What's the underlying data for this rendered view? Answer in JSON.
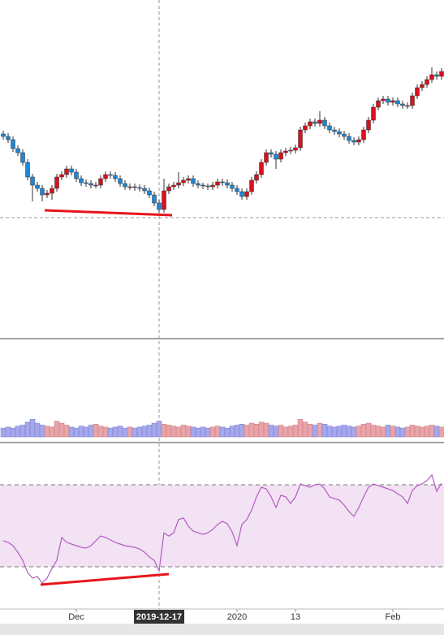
{
  "chart_data": [
    {
      "type": "candlestick",
      "up_color": "#d9101e",
      "down_color": "#1e88d8",
      "ylim": [
        0,
        41.7
      ],
      "crosshair_y": 14.9,
      "open": [
        25.2,
        24.9,
        24.5,
        23.4,
        22.9,
        21.7,
        19.9,
        18.9,
        18.5,
        17.7,
        17.9,
        18.5,
        19.9,
        20.2,
        20.9,
        20.5,
        19.7,
        19.2,
        19.1,
        18.9,
        18.9,
        19.7,
        20.2,
        20.1,
        19.7,
        19.1,
        18.7,
        18.7,
        18.6,
        18.5,
        18.2,
        17.7,
        16.7,
        15.9,
        18.2,
        18.7,
        18.9,
        19.2,
        19.5,
        19.7,
        19.1,
        18.9,
        18.8,
        18.7,
        18.9,
        19.3,
        19.2,
        18.9,
        18.5,
        18.1,
        17.5,
        18.1,
        19.5,
        20.2,
        21.7,
        22.9,
        22.7,
        22.1,
        22.9,
        23.1,
        23.2,
        23.5,
        25.7,
        26.2,
        26.7,
        26.5,
        26.9,
        26.2,
        25.7,
        25.5,
        25.2,
        24.9,
        24.4,
        24.2,
        24.5,
        25.7,
        26.9,
        28.5,
        29.3,
        29.5,
        29.1,
        29.3,
        28.9,
        28.7,
        28.7,
        29.9,
        30.9,
        31.3,
        31.9,
        32.5,
        32.3
      ],
      "high": [
        25.6,
        25.3,
        24.9,
        23.8,
        23.3,
        22.1,
        20.3,
        19.3,
        18.9,
        18.3,
        18.9,
        20.3,
        20.6,
        21.3,
        21.3,
        20.9,
        20.1,
        19.6,
        19.5,
        19.3,
        20.1,
        20.6,
        20.6,
        20.5,
        20.1,
        19.5,
        19.1,
        19.1,
        19.0,
        18.9,
        18.6,
        18.1,
        17.1,
        19.7,
        19.1,
        19.3,
        20.5,
        19.9,
        20.1,
        20.1,
        19.5,
        19.2,
        19.1,
        19.3,
        19.7,
        19.7,
        19.6,
        19.3,
        18.9,
        18.5,
        18.5,
        19.9,
        20.6,
        22.1,
        23.3,
        23.3,
        23.1,
        23.3,
        23.5,
        23.6,
        23.9,
        26.1,
        26.6,
        27.1,
        27.1,
        28.0,
        27.3,
        26.6,
        26.1,
        25.9,
        25.6,
        25.3,
        24.8,
        24.9,
        26.1,
        27.3,
        28.9,
        29.7,
        29.9,
        29.9,
        29.7,
        29.7,
        29.3,
        29.1,
        30.3,
        31.3,
        31.7,
        32.3,
        33.4,
        32.9,
        33.3
      ],
      "low": [
        24.5,
        24.1,
        23.0,
        22.5,
        21.3,
        19.5,
        16.9,
        18.1,
        16.9,
        17.3,
        17.1,
        18.1,
        19.5,
        19.8,
        20.1,
        19.3,
        18.8,
        18.7,
        18.5,
        18.5,
        18.5,
        19.3,
        19.7,
        19.3,
        18.7,
        18.3,
        18.3,
        18.2,
        18.1,
        17.8,
        17.3,
        16.3,
        15.5,
        15.5,
        17.8,
        18.3,
        18.5,
        18.8,
        19.1,
        18.7,
        18.5,
        18.4,
        18.3,
        18.3,
        18.5,
        18.8,
        18.5,
        18.1,
        17.7,
        17.1,
        17.1,
        17.7,
        19.1,
        19.8,
        21.3,
        22.3,
        20.9,
        21.7,
        22.5,
        22.7,
        22.8,
        23.1,
        25.3,
        25.8,
        26.1,
        26.1,
        25.8,
        25.3,
        25.1,
        24.8,
        24.5,
        24.0,
        23.8,
        23.8,
        24.1,
        25.3,
        26.5,
        28.1,
        28.9,
        28.7,
        28.7,
        28.5,
        28.3,
        28.3,
        28.3,
        29.5,
        30.5,
        30.9,
        31.5,
        31.9,
        31.9
      ],
      "close": [
        24.9,
        24.5,
        23.4,
        22.9,
        21.7,
        19.9,
        18.9,
        18.5,
        17.7,
        17.9,
        18.5,
        19.9,
        20.2,
        20.9,
        20.5,
        19.7,
        19.2,
        19.1,
        18.9,
        18.9,
        19.7,
        20.2,
        20.1,
        19.7,
        19.1,
        18.7,
        18.7,
        18.6,
        18.5,
        18.2,
        17.7,
        16.7,
        15.9,
        18.2,
        18.7,
        18.9,
        19.2,
        19.5,
        19.7,
        19.1,
        18.9,
        18.8,
        18.7,
        18.9,
        19.3,
        19.2,
        18.9,
        18.5,
        18.1,
        17.5,
        18.1,
        19.5,
        20.2,
        21.7,
        22.9,
        22.7,
        22.1,
        22.9,
        23.1,
        23.2,
        23.5,
        25.7,
        26.2,
        26.7,
        26.5,
        26.9,
        26.2,
        25.7,
        25.5,
        25.2,
        24.9,
        24.4,
        24.2,
        24.5,
        25.7,
        26.9,
        28.5,
        29.3,
        29.5,
        29.1,
        29.3,
        28.9,
        28.7,
        28.7,
        29.9,
        30.9,
        31.3,
        31.9,
        32.5,
        32.3,
        32.9
      ]
    },
    {
      "type": "bar",
      "up_color": "#e8a4a8",
      "down_color": "#a4a8ec",
      "ylim": [
        0,
        100
      ],
      "values": [
        9,
        10,
        9,
        11,
        12,
        15,
        18,
        14,
        12,
        11,
        10,
        16,
        14,
        12,
        10,
        9,
        11,
        10,
        12,
        13,
        11,
        10,
        9,
        10,
        11,
        9,
        10,
        9,
        10,
        11,
        12,
        14,
        16,
        13,
        12,
        11,
        10,
        12,
        11,
        10,
        9,
        10,
        9,
        10,
        11,
        10,
        9,
        11,
        12,
        13,
        12,
        14,
        13,
        15,
        14,
        12,
        11,
        12,
        10,
        11,
        12,
        18,
        15,
        13,
        12,
        14,
        13,
        11,
        10,
        11,
        12,
        11,
        10,
        11,
        13,
        14,
        12,
        11,
        10,
        12,
        11,
        10,
        9,
        10,
        12,
        11,
        10,
        11,
        12,
        11,
        10
      ]
    },
    {
      "type": "line",
      "color": "#b45cc4",
      "band_color": "#f2e2f3",
      "ylim": [
        9.4,
        90.6
      ],
      "bands": [
        30,
        70
      ],
      "values": [
        42.7,
        41.9,
        40.3,
        37.1,
        33.2,
        27.2,
        24.5,
        25.2,
        22.1,
        24.5,
        29.2,
        33.2,
        44.3,
        41.9,
        41.1,
        40.3,
        39.5,
        39.1,
        40.3,
        42.7,
        45.0,
        44.3,
        43.1,
        41.9,
        41.1,
        40.3,
        39.9,
        39.5,
        38.7,
        37.1,
        34.8,
        33.2,
        28.0,
        46.6,
        45.0,
        46.6,
        53.0,
        53.8,
        49.8,
        47.4,
        46.6,
        45.8,
        46.6,
        48.2,
        50.6,
        52.2,
        51.0,
        47.0,
        40.3,
        50.6,
        53.0,
        57.7,
        64.1,
        68.8,
        68.0,
        64.1,
        58.9,
        64.9,
        64.1,
        60.9,
        64.1,
        70.4,
        69.6,
        68.8,
        70.0,
        70.4,
        68.0,
        64.1,
        63.3,
        62.5,
        60.1,
        56.9,
        54.6,
        58.9,
        64.1,
        68.8,
        70.4,
        69.6,
        68.8,
        68.0,
        67.2,
        65.6,
        64.1,
        60.9,
        67.2,
        69.6,
        70.4,
        72.0,
        74.8,
        66.8,
        70.8
      ]
    }
  ],
  "x_axis": {
    "xlim": [
      -0.67,
      90.5
    ],
    "xticks": [
      {
        "value": 15,
        "label": "Dec"
      },
      {
        "value": 48,
        "label": "2020"
      },
      {
        "value": 60,
        "label": "13"
      },
      {
        "value": 80,
        "label": "Feb"
      }
    ],
    "crosshair": {
      "value": 32,
      "label": "2019-12-17"
    }
  }
}
